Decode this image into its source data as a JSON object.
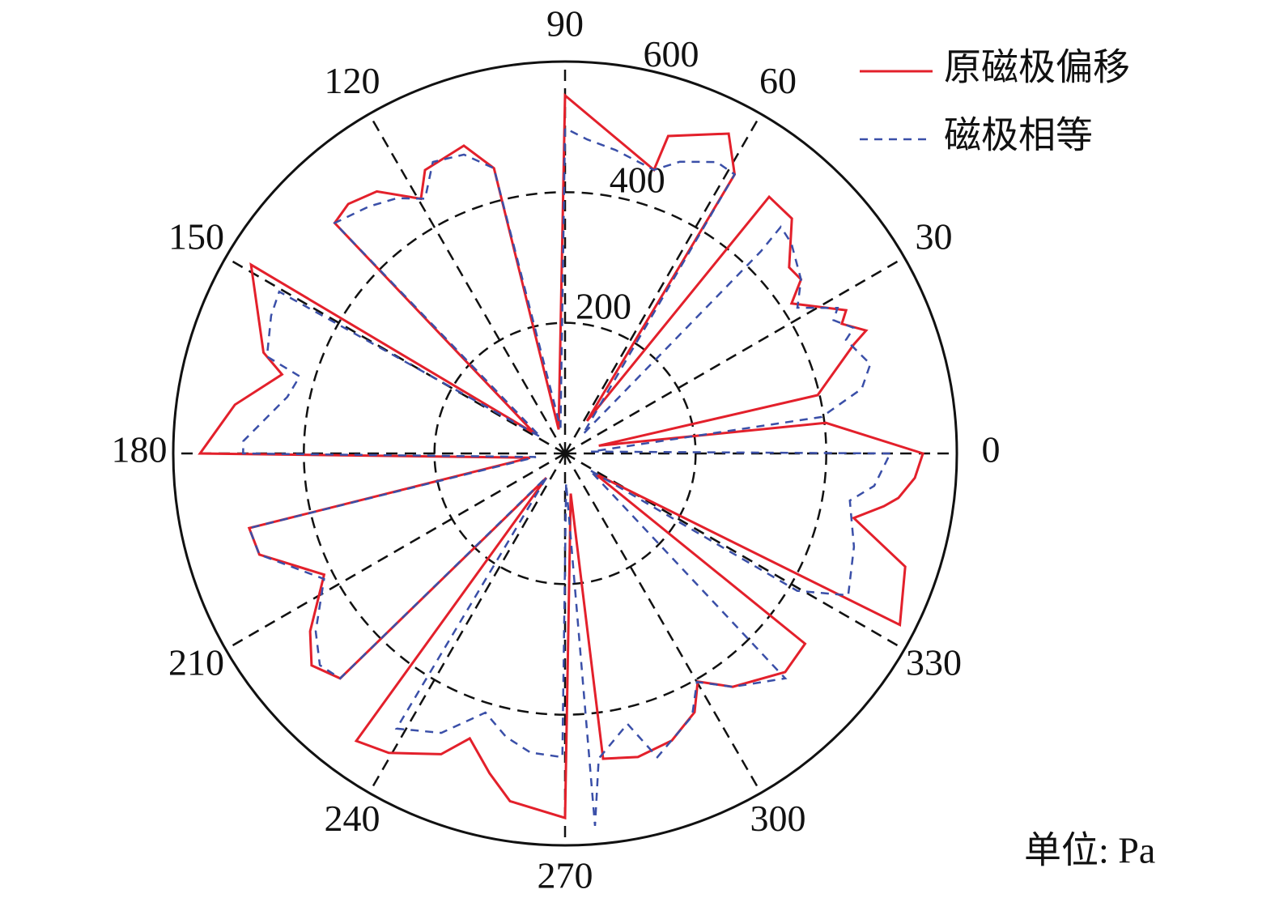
{
  "chart_data": {
    "type": "polar",
    "rlim": [
      0,
      600
    ],
    "rticks": [
      200,
      400,
      600
    ],
    "thetaticks": [
      0,
      30,
      60,
      90,
      120,
      150,
      180,
      210,
      240,
      270,
      300,
      330
    ],
    "grid": true,
    "legend": "upper right",
    "unit_label": "单位: Pa",
    "series": [
      {
        "name": "原磁极偏移",
        "color": "#e3202b",
        "dash": false,
        "theta": [
          0,
          6.7,
          13,
          13,
          20.7,
          22.2,
          25.1,
          27,
          33.5,
          36.4,
          39.7,
          46,
          51.5,
          56,
          58.7,
          62.9,
          72,
          72.6,
          90,
          105,
          104,
          108.2,
          116.3,
          119.5,
          125.7,
          131,
          135,
          146.7,
          149,
          161.5,
          164.4,
          171.6,
          180,
          187,
          193.3,
          198.3,
          206.7,
          211.7,
          214.9,
          219.9,
          225,
          232.5,
          234,
          239.5,
          247.6,
          251.5,
          256.7,
          261,
          270,
          278,
          277.1,
          283.5,
          290.4,
          296.6,
          300.2,
          305.7,
          315.2,
          321.6,
          326,
          332.9,
          341.6,
          347.4,
          350.6,
          352.4,
          356
        ],
        "r": [
          548,
          402,
          53,
          397,
          473,
          498,
          468,
          483,
          416,
          449,
          446,
          500,
          502,
          60,
          500,
          550,
          511,
          455,
          548,
          38,
          450,
          496,
          484,
          448,
          494,
          506,
          499,
          56,
          561,
          487,
          450,
          511,
          559,
          54,
          497,
          493,
          413,
          448,
          476,
          506,
          487,
          47,
          544,
          532,
          498,
          460,
          503,
          539,
          558,
          62,
          471,
          478,
          469,
          443,
          404,
          440,
          475,
          469,
          55,
          576,
          549,
          453,
          495,
          515,
          537
        ]
      },
      {
        "name": "磁极相等",
        "color": "#3a4fa8",
        "dash": true,
        "theta": [
          0,
          4,
          8.1,
          12.3,
          16.3,
          22,
          23.5,
          26.4,
          28.1,
          32.1,
          36.4,
          42.9,
          46.4,
          45.9,
          47,
          58.7,
          62.5,
          68.5,
          72.6,
          80.6,
          86,
          90,
          100,
          104,
          108.7,
          114.4,
          118.8,
          123.4,
          128.5,
          135,
          146,
          150.5,
          154.9,
          162,
          163.8,
          168.5,
          177.8,
          180,
          187,
          193.3,
          198.3,
          207.5,
          215.5,
          220.8,
          225,
          232,
          238.5,
          246.1,
          252.9,
          258.2,
          263.4,
          269.5,
          272,
          274.6,
          276.3,
          283,
          286.9,
          295.8,
          300,
          305.7,
          314.4,
          326,
          329.4,
          333.4,
          342.1,
          350.6,
          354
        ],
        "r": [
          498,
          40,
          397,
          465,
          487,
          464,
          482,
          459,
          473,
          420,
          449,
          473,
          479,
          431,
          40,
          500,
          503,
          480,
          455,
          471,
          482,
          498,
          40,
          450,
          483,
          490,
          445,
          468,
          483,
          499,
          45,
          503,
          497,
          480,
          423,
          434,
          493,
          493,
          45,
          497,
          493,
          416,
          469,
          496,
          487,
          45,
          494,
          468,
          415,
          443,
          461,
          465,
          45,
          572,
          470,
          425,
          486,
          447,
          404,
          440,
          482,
          45,
          413,
          485,
          465,
          442,
          476
        ]
      }
    ]
  }
}
